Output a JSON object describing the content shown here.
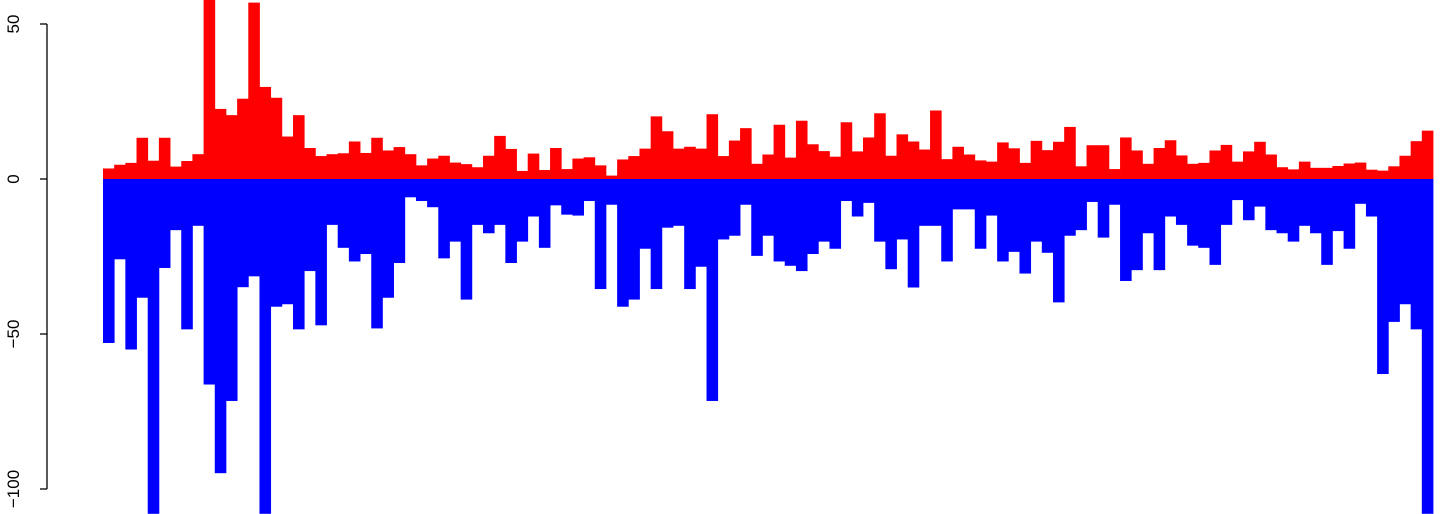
{
  "chart_data": {
    "type": "bar",
    "title": "",
    "xlabel": "",
    "ylabel": "",
    "ylim": [
      -108,
      58
    ],
    "y_ticks": [
      {
        "value": 50,
        "label": "50"
      },
      {
        "value": 0,
        "label": "0"
      },
      {
        "value": -50,
        "label": "−50"
      },
      {
        "value": -100,
        "label": "−100"
      }
    ],
    "grid": false,
    "legend": "none",
    "series": [
      {
        "color": "#ff0000",
        "values": [
          3.4,
          4.6,
          5.2,
          13.3,
          5.9,
          13.3,
          4,
          5.8,
          8,
          60,
          22.6,
          20.6,
          25.9,
          56.9,
          29.7,
          26.2,
          13.7,
          20.6,
          10,
          7.4,
          8,
          8.3,
          12.1,
          8.4,
          13.3,
          9.2,
          10.3,
          8,
          4.4,
          6.6,
          7.5,
          5.3,
          4.8,
          3.8,
          7.5,
          13.9,
          9.7,
          2.6,
          8.2,
          2.9,
          10,
          3.2,
          6.6,
          7,
          4.4,
          1.1,
          6.3,
          7.4,
          9.8,
          20.2,
          15.4,
          9.8,
          10.4,
          9.8,
          20.9,
          7.4,
          12.4,
          16.4,
          4.9,
          7.9,
          17.5,
          6.9,
          18.8,
          11.2,
          9,
          7.2,
          18.3,
          8.9,
          13.4,
          21.2,
          7.5,
          14.4,
          12.1,
          9.5,
          22.1,
          6.4,
          10.4,
          7.9,
          6,
          5.6,
          11.8,
          9.9,
          5.2,
          12.3,
          9.3,
          12,
          16.8,
          4.1,
          10.9,
          10.9,
          3.2,
          13.4,
          9.2,
          4.9,
          10,
          12.5,
          7.6,
          4.9,
          5.2,
          9.2,
          11,
          5.6,
          8.9,
          12,
          7.9,
          3.8,
          3.1,
          5.6,
          3.6,
          3.6,
          4.2,
          5,
          5.3,
          3,
          2.7,
          4.1,
          7.5,
          12.2,
          15.6
        ]
      },
      {
        "color": "#0000ff",
        "values": [
          -52.9,
          -25.9,
          -55,
          -38.3,
          -108,
          -28.7,
          -16.5,
          -48.5,
          -15.1,
          -66.3,
          -94.9,
          -71.6,
          -34.9,
          -31.4,
          -108,
          -41.2,
          -40.4,
          -48.5,
          -29.7,
          -47.2,
          -14.8,
          -22.2,
          -26.6,
          -24.2,
          -48.2,
          -38.3,
          -27.1,
          -5.9,
          -7.1,
          -9.1,
          -25.6,
          -20.2,
          -38.9,
          -14.8,
          -17.5,
          -14.8,
          -27.1,
          -20.2,
          -12.1,
          -22.2,
          -8.5,
          -11.5,
          -11.8,
          -7.1,
          -35.5,
          -8.3,
          -41.2,
          -38.9,
          -22.5,
          -35.5,
          -15.7,
          -15.1,
          -35.5,
          -28.3,
          -71.6,
          -19.5,
          -18.3,
          -8.3,
          -24.8,
          -18.3,
          -26.6,
          -28,
          -29.7,
          -24.2,
          -20.2,
          -22.5,
          -7.1,
          -12.1,
          -7.7,
          -20.2,
          -29.1,
          -19.5,
          -35,
          -15.1,
          -15.1,
          -26.6,
          -9.8,
          -9.8,
          -22.5,
          -11.8,
          -26.6,
          -23.5,
          -30.5,
          -20.2,
          -23.8,
          -39.8,
          -18.3,
          -16.5,
          -7.4,
          -18.9,
          -8.3,
          -32.9,
          -29.4,
          -17.5,
          -29.4,
          -12.1,
          -14.8,
          -21.5,
          -22.2,
          -27.7,
          -14.8,
          -6.8,
          -13.3,
          -8.9,
          -16.5,
          -17.5,
          -20.2,
          -15.1,
          -17.5,
          -27.7,
          -16.8,
          -22.5,
          -8,
          -12.1,
          -62.9,
          -46.1,
          -40.4,
          -48.5,
          -108
        ]
      }
    ]
  }
}
